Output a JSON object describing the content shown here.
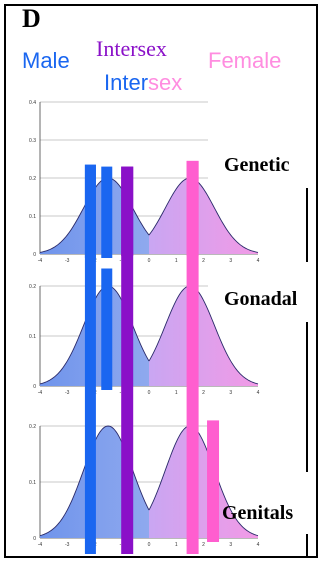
{
  "panel": {
    "letter": "D",
    "legend": {
      "male": "Male",
      "intersex_top": "Intersex",
      "female": "Female",
      "intersex_bottom_a": "Inter",
      "intersex_bottom_b": "sex"
    }
  },
  "rows": [
    {
      "label": "Genetic"
    },
    {
      "label": "Gonadal"
    },
    {
      "label": "Genitals"
    }
  ],
  "colors": {
    "male": "#1a66f0",
    "intersex": "#8a10c8",
    "female": "#ff5ecf",
    "female_text": "#ff8de0",
    "male_fill": "#6f94ec",
    "female_fill": "#f29ae6",
    "curve": "#2a2a6a",
    "grid": "#c8c8c8"
  },
  "chart_data": [
    {
      "type": "area",
      "row": "Genetic",
      "ylim": [
        0,
        0.4
      ],
      "yticks": [
        "0",
        "0.1",
        "0.2",
        "0.3",
        "0.4"
      ],
      "xlim": [
        -4,
        4
      ],
      "xticks": [
        "-4",
        "-3",
        "-2",
        "-1",
        "0",
        "1",
        "2",
        "3",
        "4"
      ],
      "grid": true,
      "series": [
        {
          "mean": -1.5,
          "sd": 0.9,
          "peak": 0.2
        },
        {
          "mean": 1.5,
          "sd": 0.9,
          "peak": 0.2
        }
      ],
      "bars": [
        {
          "color": "male",
          "x": -2.15,
          "top": 0.235
        },
        {
          "color": "male",
          "x": -1.55,
          "top": 0.23
        },
        {
          "color": "intersex",
          "x": -0.8,
          "top": 0.23
        },
        {
          "color": "female",
          "x": 1.6,
          "top": 0.245
        }
      ]
    },
    {
      "type": "area",
      "row": "Gonadal",
      "ylim": [
        0,
        0.2
      ],
      "yticks": [
        "0",
        "0.1",
        "0.2"
      ],
      "xlim": [
        -4,
        4
      ],
      "xticks": [
        "-4",
        "-3",
        "-2",
        "-1",
        "0",
        "1",
        "2",
        "3",
        "4"
      ],
      "grid": true,
      "series": [
        {
          "mean": -1.5,
          "sd": 0.9,
          "peak": 0.2
        },
        {
          "mean": 1.5,
          "sd": 0.9,
          "peak": 0.2
        }
      ],
      "bars": [
        {
          "color": "male",
          "x": -1.55,
          "top": 0.235
        }
      ]
    },
    {
      "type": "area",
      "row": "Genitals",
      "ylim": [
        0,
        0.2
      ],
      "yticks": [
        "0",
        "0.1",
        "0.2"
      ],
      "xlim": [
        -4,
        4
      ],
      "xticks": [
        "-4",
        "-3",
        "-2",
        "-1",
        "0",
        "1",
        "2",
        "3",
        "4"
      ],
      "grid": true,
      "series": [
        {
          "mean": -1.5,
          "sd": 0.9,
          "peak": 0.2
        },
        {
          "mean": 1.5,
          "sd": 0.9,
          "peak": 0.2
        }
      ],
      "bars": [
        {
          "color": "female",
          "x": 2.35,
          "top": 0.21
        }
      ]
    }
  ]
}
